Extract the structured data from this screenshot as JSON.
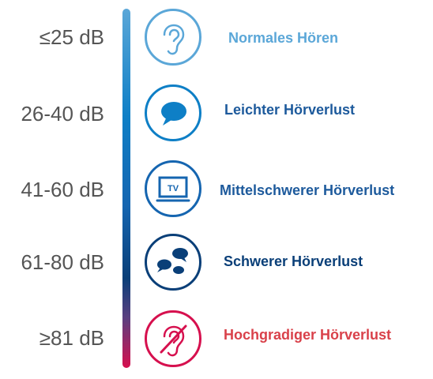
{
  "levels": [
    {
      "db": "≤25 dB",
      "label": "Normales Hören",
      "color": "#5ba7d8",
      "icon": "ear-icon"
    },
    {
      "db": "26-40 dB",
      "label": "Leichter Hörverlust",
      "color": "#0e7fc6",
      "icon": "speech-bubble-icon"
    },
    {
      "db": "41-60 dB",
      "label": "Mittelschwerer Hörverlust",
      "color": "#1565b0",
      "icon": "tv-icon",
      "icon_text": "TV"
    },
    {
      "db": "61-80 dB",
      "label": "Schwerer Hörverlust",
      "color": "#0a3f78",
      "icon": "chat-bubbles-icon"
    },
    {
      "db": "≥81 dB",
      "label": "Hochgradiger Hörverlust",
      "color": "#d6104e",
      "icon": "ear-crossed-icon"
    }
  ]
}
